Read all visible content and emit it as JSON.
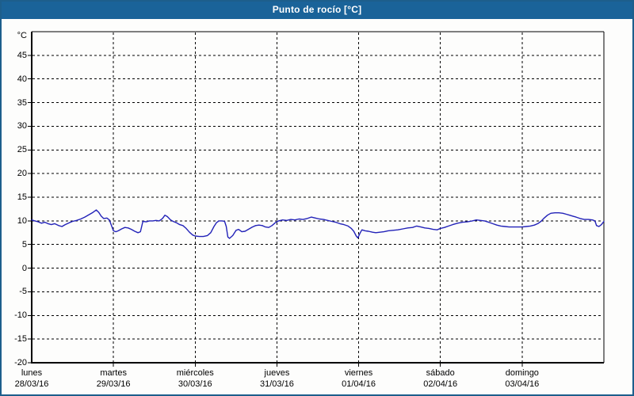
{
  "window": {
    "title": "Punto de rocío [°C]"
  },
  "colors": {
    "titlebar_bg": "#1a6399",
    "frame_border": "#1d5e8c",
    "background": "#fdfdfc",
    "grid": "#000000",
    "axis": "#000000",
    "line": "#2222b8"
  },
  "chart_data": {
    "type": "line",
    "title": "Punto de rocío [°C]",
    "y_unit_label": "°C",
    "ylim": [
      -20,
      50
    ],
    "xlim": [
      0,
      7
    ],
    "y_tick_step": 5,
    "y_ticks": [
      45,
      40,
      35,
      30,
      25,
      20,
      15,
      10,
      5,
      0,
      -5,
      -10,
      -15,
      -20
    ],
    "grid": "dashed-black-horizontal-and-daily-vertical",
    "legend": "none",
    "x_days": [
      {
        "name": "lunes",
        "date": "28/03/16"
      },
      {
        "name": "martes",
        "date": "29/03/16"
      },
      {
        "name": "miércoles",
        "date": "30/03/16"
      },
      {
        "name": "jueves",
        "date": "31/03/16"
      },
      {
        "name": "viernes",
        "date": "01/04/16"
      },
      {
        "name": "sábado",
        "date": "02/04/16"
      },
      {
        "name": "domingo",
        "date": "03/04/16"
      }
    ],
    "series": [
      {
        "name": "Punto de rocío [°C]",
        "color": "#2222b8",
        "x_unit": "days_from_2016-03-28_00:00",
        "points": [
          [
            0.0,
            10.2
          ],
          [
            0.04,
            10.0
          ],
          [
            0.08,
            9.8
          ],
          [
            0.12,
            9.5
          ],
          [
            0.16,
            9.7
          ],
          [
            0.2,
            9.4
          ],
          [
            0.24,
            9.2
          ],
          [
            0.28,
            9.4
          ],
          [
            0.33,
            9.0
          ],
          [
            0.37,
            8.8
          ],
          [
            0.41,
            9.2
          ],
          [
            0.46,
            9.6
          ],
          [
            0.5,
            9.9
          ],
          [
            0.55,
            10.1
          ],
          [
            0.6,
            10.4
          ],
          [
            0.65,
            10.8
          ],
          [
            0.7,
            11.3
          ],
          [
            0.75,
            11.8
          ],
          [
            0.79,
            12.3
          ],
          [
            0.82,
            11.8
          ],
          [
            0.85,
            11.0
          ],
          [
            0.88,
            10.5
          ],
          [
            0.92,
            10.6
          ],
          [
            0.95,
            10.2
          ],
          [
            0.97,
            9.3
          ],
          [
            1.0,
            7.9
          ],
          [
            1.03,
            7.7
          ],
          [
            1.06,
            7.9
          ],
          [
            1.1,
            8.3
          ],
          [
            1.14,
            8.6
          ],
          [
            1.18,
            8.5
          ],
          [
            1.22,
            8.2
          ],
          [
            1.26,
            7.8
          ],
          [
            1.3,
            7.5
          ],
          [
            1.33,
            7.7
          ],
          [
            1.36,
            9.9
          ],
          [
            1.4,
            9.8
          ],
          [
            1.44,
            10.0
          ],
          [
            1.48,
            10.0
          ],
          [
            1.52,
            10.1
          ],
          [
            1.56,
            10.0
          ],
          [
            1.6,
            10.5
          ],
          [
            1.63,
            11.2
          ],
          [
            1.66,
            10.9
          ],
          [
            1.7,
            10.2
          ],
          [
            1.73,
            9.9
          ],
          [
            1.77,
            9.6
          ],
          [
            1.81,
            9.2
          ],
          [
            1.85,
            9.0
          ],
          [
            1.89,
            8.4
          ],
          [
            1.93,
            7.6
          ],
          [
            1.97,
            7.0
          ],
          [
            2.0,
            6.8
          ],
          [
            2.05,
            6.7
          ],
          [
            2.1,
            6.7
          ],
          [
            2.15,
            6.9
          ],
          [
            2.19,
            7.5
          ],
          [
            2.23,
            8.8
          ],
          [
            2.26,
            9.6
          ],
          [
            2.29,
            10.0
          ],
          [
            2.33,
            10.0
          ],
          [
            2.36,
            9.9
          ],
          [
            2.38,
            8.8
          ],
          [
            2.4,
            6.6
          ],
          [
            2.42,
            6.3
          ],
          [
            2.46,
            6.9
          ],
          [
            2.5,
            8.0
          ],
          [
            2.53,
            8.2
          ],
          [
            2.57,
            7.7
          ],
          [
            2.61,
            7.8
          ],
          [
            2.65,
            8.2
          ],
          [
            2.7,
            8.7
          ],
          [
            2.74,
            9.0
          ],
          [
            2.78,
            9.1
          ],
          [
            2.82,
            9.0
          ],
          [
            2.86,
            8.7
          ],
          [
            2.9,
            8.6
          ],
          [
            2.94,
            9.0
          ],
          [
            2.98,
            9.6
          ],
          [
            3.02,
            10.0
          ],
          [
            3.07,
            10.2
          ],
          [
            3.12,
            10.1
          ],
          [
            3.17,
            10.3
          ],
          [
            3.22,
            10.2
          ],
          [
            3.27,
            10.4
          ],
          [
            3.32,
            10.3
          ],
          [
            3.37,
            10.5
          ],
          [
            3.42,
            10.8
          ],
          [
            3.47,
            10.6
          ],
          [
            3.52,
            10.4
          ],
          [
            3.57,
            10.3
          ],
          [
            3.62,
            10.1
          ],
          [
            3.67,
            9.9
          ],
          [
            3.72,
            9.7
          ],
          [
            3.77,
            9.4
          ],
          [
            3.82,
            9.2
          ],
          [
            3.87,
            8.9
          ],
          [
            3.91,
            8.4
          ],
          [
            3.94,
            7.8
          ],
          [
            3.97,
            6.8
          ],
          [
            3.99,
            6.4
          ],
          [
            4.02,
            7.5
          ],
          [
            4.04,
            8.1
          ],
          [
            4.08,
            7.9
          ],
          [
            4.12,
            7.8
          ],
          [
            4.17,
            7.6
          ],
          [
            4.21,
            7.5
          ],
          [
            4.26,
            7.6
          ],
          [
            4.31,
            7.7
          ],
          [
            4.36,
            7.9
          ],
          [
            4.42,
            8.0
          ],
          [
            4.48,
            8.1
          ],
          [
            4.54,
            8.3
          ],
          [
            4.6,
            8.5
          ],
          [
            4.66,
            8.6
          ],
          [
            4.71,
            8.9
          ],
          [
            4.76,
            8.7
          ],
          [
            4.81,
            8.5
          ],
          [
            4.86,
            8.4
          ],
          [
            4.91,
            8.2
          ],
          [
            4.96,
            8.1
          ],
          [
            5.0,
            8.4
          ],
          [
            5.05,
            8.6
          ],
          [
            5.1,
            8.9
          ],
          [
            5.15,
            9.2
          ],
          [
            5.21,
            9.5
          ],
          [
            5.27,
            9.7
          ],
          [
            5.33,
            9.8
          ],
          [
            5.39,
            10.0
          ],
          [
            5.44,
            10.2
          ],
          [
            5.49,
            10.1
          ],
          [
            5.54,
            10.0
          ],
          [
            5.59,
            9.7
          ],
          [
            5.64,
            9.4
          ],
          [
            5.69,
            9.1
          ],
          [
            5.74,
            8.9
          ],
          [
            5.79,
            8.8
          ],
          [
            5.84,
            8.7
          ],
          [
            5.9,
            8.7
          ],
          [
            5.95,
            8.7
          ],
          [
            6.0,
            8.7
          ],
          [
            6.05,
            8.8
          ],
          [
            6.1,
            8.9
          ],
          [
            6.15,
            9.1
          ],
          [
            6.19,
            9.4
          ],
          [
            6.23,
            9.9
          ],
          [
            6.27,
            10.6
          ],
          [
            6.31,
            11.2
          ],
          [
            6.35,
            11.6
          ],
          [
            6.4,
            11.7
          ],
          [
            6.45,
            11.7
          ],
          [
            6.5,
            11.6
          ],
          [
            6.54,
            11.4
          ],
          [
            6.58,
            11.2
          ],
          [
            6.62,
            11.0
          ],
          [
            6.66,
            10.8
          ],
          [
            6.71,
            10.5
          ],
          [
            6.76,
            10.3
          ],
          [
            6.81,
            10.3
          ],
          [
            6.86,
            10.2
          ],
          [
            6.89,
            10.0
          ],
          [
            6.91,
            9.0
          ],
          [
            6.94,
            8.8
          ],
          [
            6.97,
            9.2
          ],
          [
            7.0,
            9.9
          ]
        ]
      }
    ]
  }
}
